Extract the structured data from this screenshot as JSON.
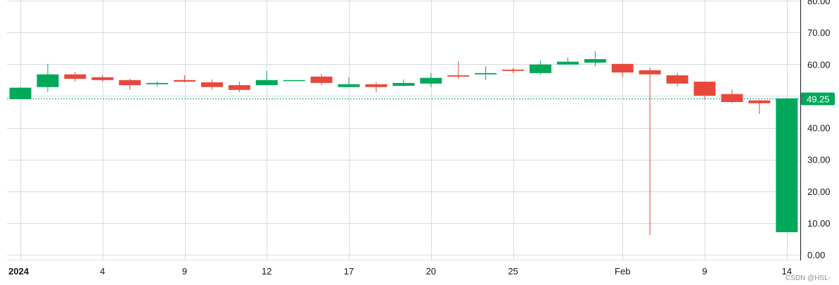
{
  "chart_data": {
    "type": "candlestick",
    "title": "",
    "xlabel": "",
    "ylabel": "",
    "ylim": [
      0,
      80
    ],
    "grid": true,
    "y_ticks": [
      "0.00",
      "10.00",
      "20.00",
      "30.00",
      "40.00",
      "50.00",
      "60.00",
      "70.00",
      "80.00"
    ],
    "y_tick_labels_visible": [
      "0.00",
      "10.00",
      "20.00",
      "30.00",
      "40.00",
      "60.00",
      "70.00",
      "80.00"
    ],
    "x_tick_labels": [
      {
        "label": "2024",
        "index": 0,
        "bold": true
      },
      {
        "label": "4",
        "index": 3,
        "bold": false
      },
      {
        "label": "9",
        "index": 6,
        "bold": false
      },
      {
        "label": "12",
        "index": 9,
        "bold": false
      },
      {
        "label": "17",
        "index": 12,
        "bold": false
      },
      {
        "label": "20",
        "index": 15,
        "bold": false
      },
      {
        "label": "25",
        "index": 18,
        "bold": false
      },
      {
        "label": "Feb",
        "index": 22,
        "bold": false
      },
      {
        "label": "9",
        "index": 25,
        "bold": false
      },
      {
        "label": "14",
        "index": 28,
        "bold": false
      }
    ],
    "last_price": {
      "value": "49.25",
      "color": "#089981"
    },
    "up_color": "#00a95a",
    "down_color": "#e8483b",
    "candles": [
      {
        "o": 49.0,
        "h": 52.8,
        "l": 49.0,
        "c": 52.6
      },
      {
        "o": 52.8,
        "h": 60.1,
        "l": 51.2,
        "c": 56.8
      },
      {
        "o": 56.8,
        "h": 57.6,
        "l": 54.5,
        "c": 55.4
      },
      {
        "o": 55.9,
        "h": 56.5,
        "l": 54.5,
        "c": 55.0
      },
      {
        "o": 55.0,
        "h": 55.4,
        "l": 51.9,
        "c": 53.4
      },
      {
        "o": 53.7,
        "h": 54.5,
        "l": 53.0,
        "c": 54.1
      },
      {
        "o": 55.0,
        "h": 56.5,
        "l": 54.3,
        "c": 54.5
      },
      {
        "o": 54.3,
        "h": 55.2,
        "l": 52.1,
        "c": 52.8
      },
      {
        "o": 53.4,
        "h": 54.5,
        "l": 51.2,
        "c": 51.9
      },
      {
        "o": 53.4,
        "h": 57.9,
        "l": 53.4,
        "c": 55.0
      },
      {
        "o": 54.8,
        "h": 55.0,
        "l": 54.8,
        "c": 55.0
      },
      {
        "o": 56.1,
        "h": 57.0,
        "l": 53.4,
        "c": 54.1
      },
      {
        "o": 52.8,
        "h": 55.9,
        "l": 52.8,
        "c": 53.7
      },
      {
        "o": 53.7,
        "h": 54.3,
        "l": 51.2,
        "c": 52.8
      },
      {
        "o": 53.2,
        "h": 55.2,
        "l": 53.0,
        "c": 54.1
      },
      {
        "o": 53.9,
        "h": 57.2,
        "l": 52.8,
        "c": 55.7
      },
      {
        "o": 56.5,
        "h": 61.0,
        "l": 55.4,
        "c": 56.1
      },
      {
        "o": 56.8,
        "h": 59.4,
        "l": 55.0,
        "c": 57.2
      },
      {
        "o": 58.3,
        "h": 58.8,
        "l": 57.2,
        "c": 57.9
      },
      {
        "o": 57.2,
        "h": 61.2,
        "l": 56.8,
        "c": 59.9
      },
      {
        "o": 59.9,
        "h": 62.1,
        "l": 59.9,
        "c": 60.8
      },
      {
        "o": 60.5,
        "h": 64.1,
        "l": 59.4,
        "c": 61.6
      },
      {
        "o": 60.1,
        "h": 60.1,
        "l": 55.9,
        "c": 57.4
      },
      {
        "o": 58.1,
        "h": 59.0,
        "l": 6.2,
        "c": 56.8
      },
      {
        "o": 56.5,
        "h": 57.4,
        "l": 53.0,
        "c": 53.9
      },
      {
        "o": 54.5,
        "h": 54.5,
        "l": 48.8,
        "c": 50.1
      },
      {
        "o": 50.6,
        "h": 52.1,
        "l": 47.7,
        "c": 48.1
      },
      {
        "o": 48.6,
        "h": 48.8,
        "l": 44.3,
        "c": 47.7
      },
      {
        "o": 7.1,
        "h": 49.25,
        "l": 7.1,
        "c": 49.25
      }
    ]
  },
  "watermark": "CSDN @HSL-"
}
